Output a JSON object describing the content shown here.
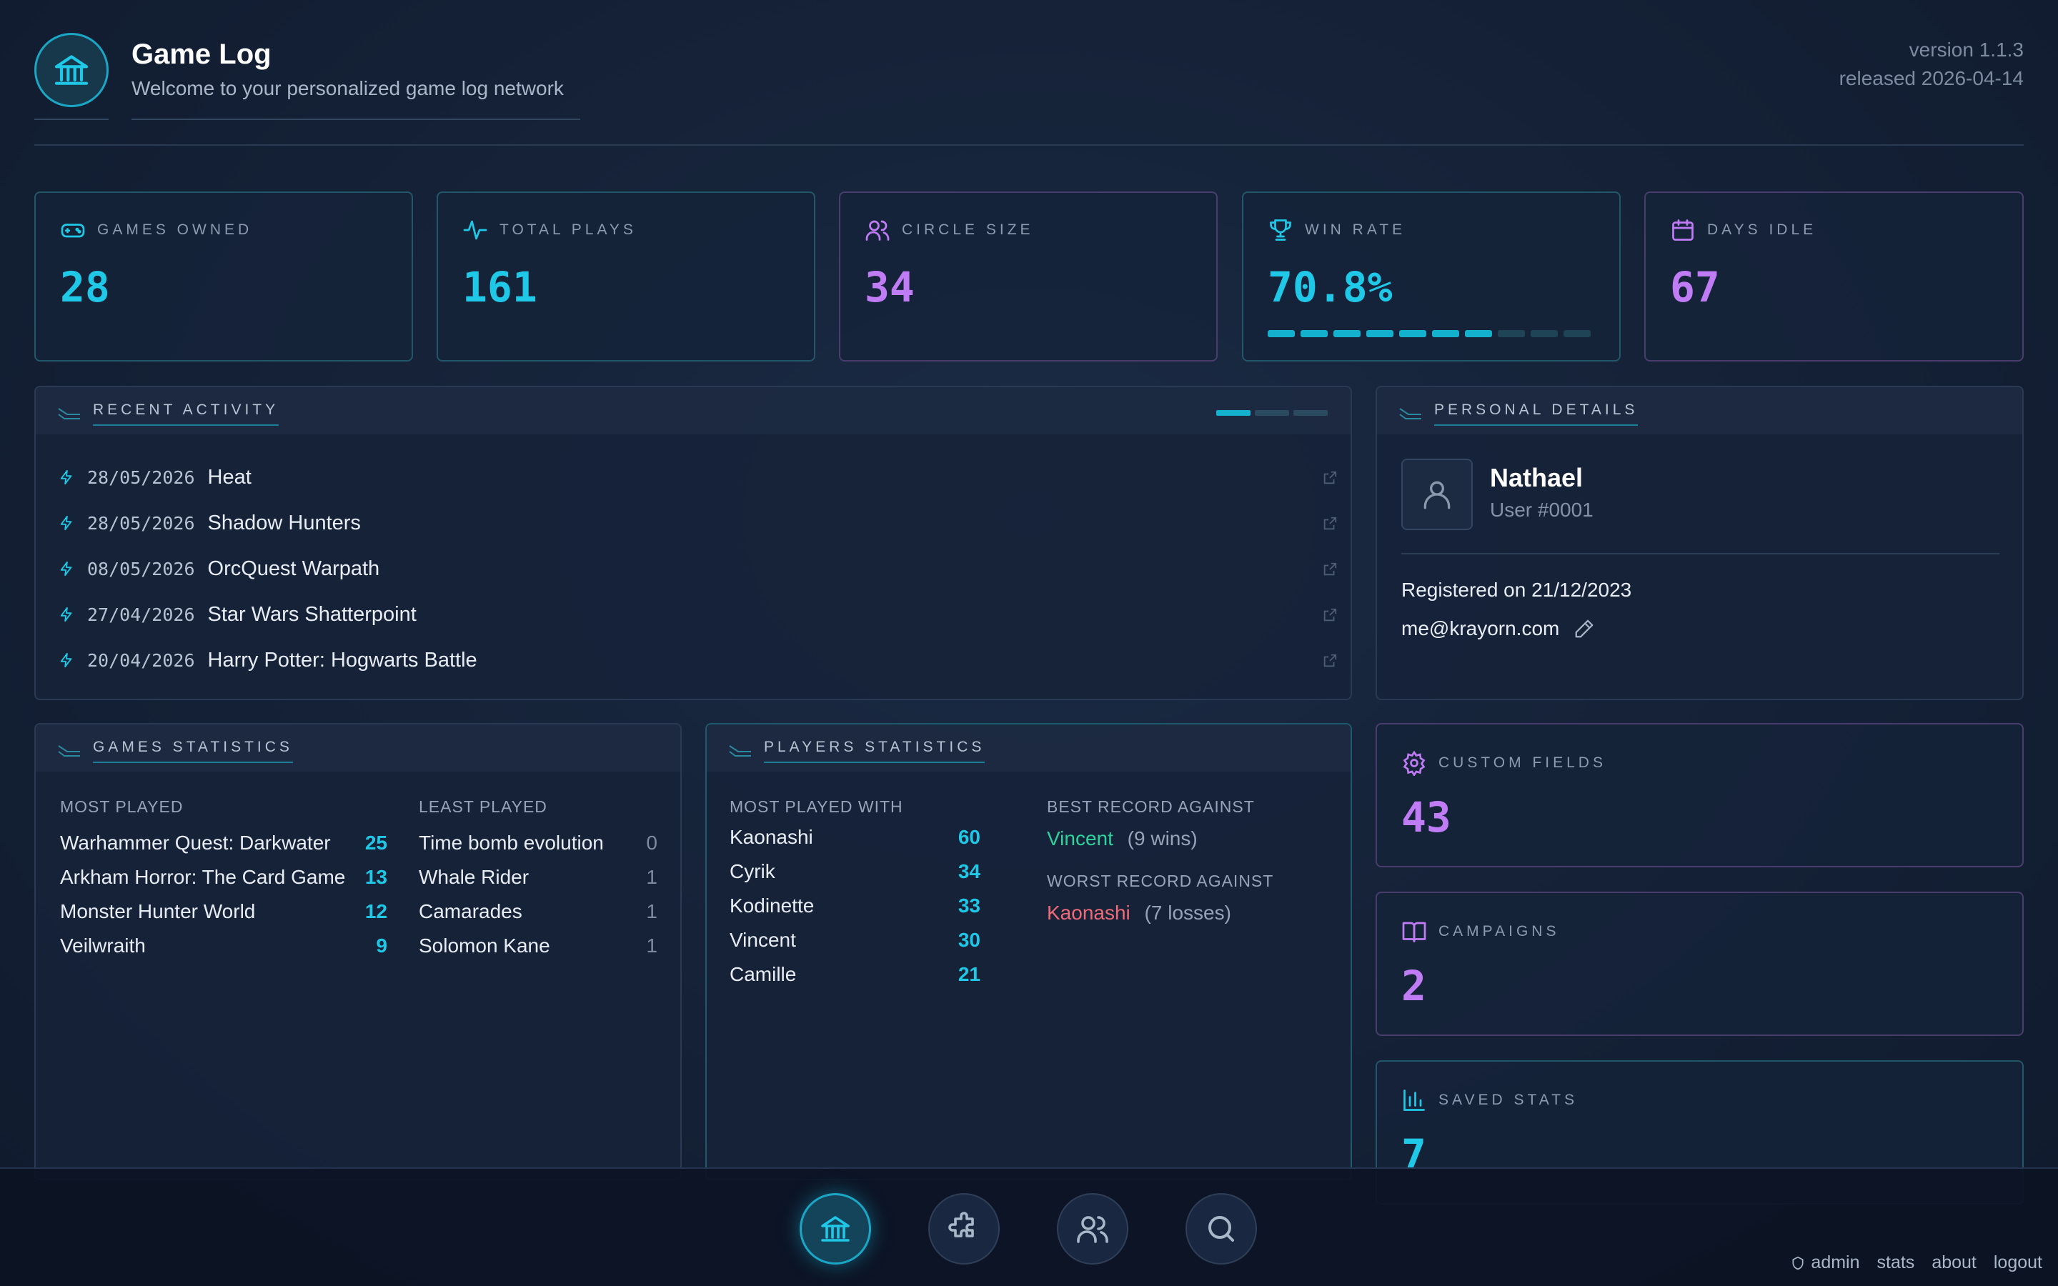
{
  "header": {
    "title": "Game Log",
    "subtitle": "Welcome to your personalized game log network",
    "version": "version 1.1.3",
    "released": "released 2026-04-14",
    "logo_icon": "bank-icon"
  },
  "stats": [
    {
      "label": "GAMES OWNED",
      "value": "28",
      "icon": "gamepad-icon",
      "color": "#1fc8e6"
    },
    {
      "label": "TOTAL PLAYS",
      "value": "161",
      "icon": "activity-icon",
      "color": "#1fc8e6"
    },
    {
      "label": "CIRCLE SIZE",
      "value": "34",
      "icon": "users-icon",
      "color": "#c07cf5"
    },
    {
      "label": "WIN RATE",
      "value": "70.8%",
      "icon": "trophy-icon",
      "color": "#1fc8e6",
      "progress": 0.708
    },
    {
      "label": "DAYS IDLE",
      "value": "67",
      "icon": "calendar-icon",
      "color": "#c07cf5"
    }
  ],
  "recent": {
    "title": "RECENT ACTIVITY",
    "items": [
      {
        "date": "28/05/2026",
        "name": "Heat"
      },
      {
        "date": "28/05/2026",
        "name": "Shadow Hunters"
      },
      {
        "date": "08/05/2026",
        "name": "OrcQuest Warpath"
      },
      {
        "date": "27/04/2026",
        "name": "Star Wars Shatterpoint"
      },
      {
        "date": "20/04/2026",
        "name": "Harry Potter: Hogwarts Battle"
      }
    ]
  },
  "personal": {
    "title": "PERSONAL DETAILS",
    "name": "Nathael",
    "user_id": "User #0001",
    "registered": "Registered on 21/12/2023",
    "email": "me@krayorn.com"
  },
  "games_stats": {
    "title": "GAMES STATISTICS",
    "most_label": "MOST PLAYED",
    "least_label": "LEAST PLAYED",
    "most": [
      {
        "name": "Warhammer Quest: Darkwater",
        "count": "25"
      },
      {
        "name": "Arkham Horror: The Card Game",
        "count": "13"
      },
      {
        "name": "Monster Hunter World",
        "count": "12"
      },
      {
        "name": "Veilwraith",
        "count": "9"
      }
    ],
    "least": [
      {
        "name": "Time bomb evolution",
        "count": "0"
      },
      {
        "name": "Whale Rider",
        "count": "1"
      },
      {
        "name": "Camarades",
        "count": "1"
      },
      {
        "name": "Solomon Kane",
        "count": "1"
      }
    ]
  },
  "players_stats": {
    "title": "PLAYERS STATISTICS",
    "most_label": "MOST PLAYED WITH",
    "most": [
      {
        "name": "Kaonashi",
        "count": "60"
      },
      {
        "name": "Cyrik",
        "count": "34"
      },
      {
        "name": "Kodinette",
        "count": "33"
      },
      {
        "name": "Vincent",
        "count": "30"
      },
      {
        "name": "Camille",
        "count": "21"
      }
    ],
    "best_label": "BEST RECORD AGAINST",
    "best_name": "Vincent",
    "best_detail": "(9 wins)",
    "worst_label": "WORST RECORD AGAINST",
    "worst_name": "Kaonashi",
    "worst_detail": "(7 losses)"
  },
  "side": [
    {
      "label": "CUSTOM FIELDS",
      "value": "43",
      "icon": "gear-icon"
    },
    {
      "label": "CAMPAIGNS",
      "value": "2",
      "icon": "book-icon"
    },
    {
      "label": "SAVED STATS",
      "value": "7",
      "icon": "bar-chart-icon"
    }
  ],
  "footer": {
    "admin": "admin",
    "stats": "stats",
    "about": "about",
    "logout": "logout"
  }
}
